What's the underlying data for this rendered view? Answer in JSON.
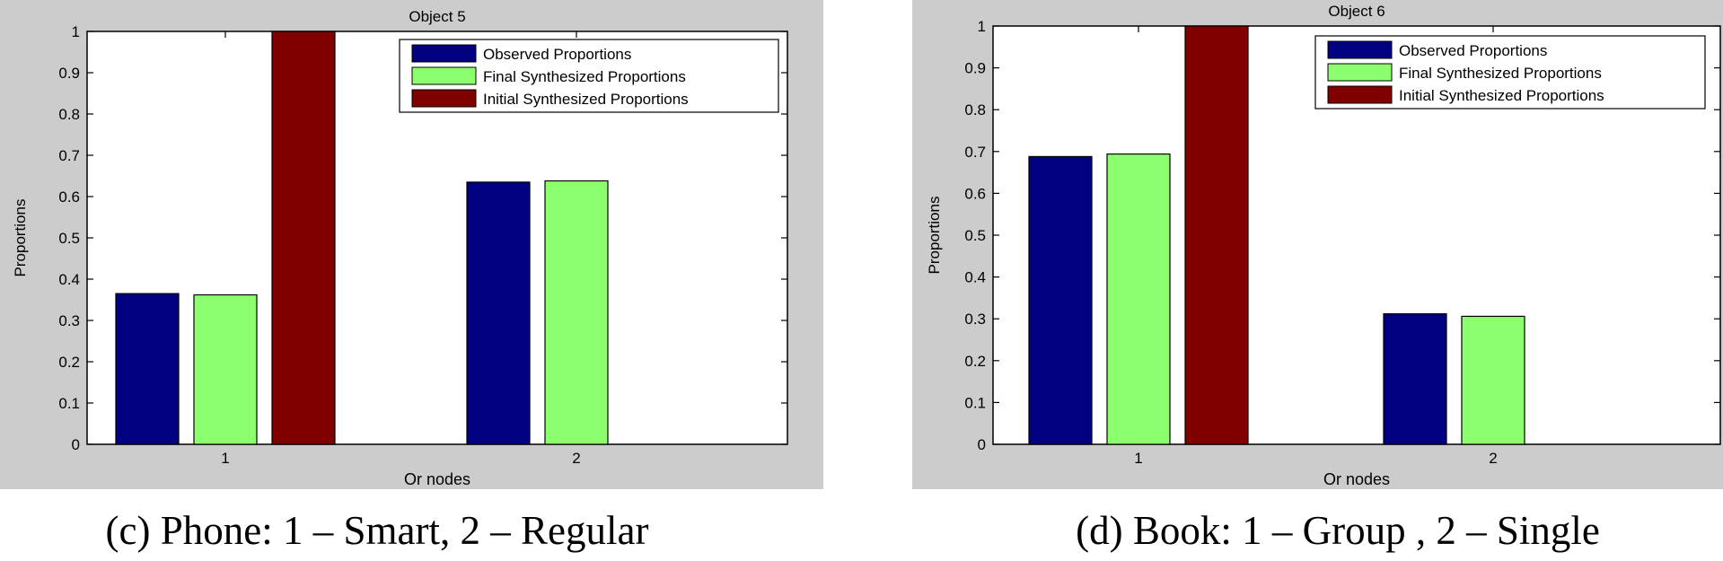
{
  "chart_data": [
    {
      "type": "bar",
      "title": "Object 5",
      "xlabel": "Or nodes",
      "ylabel": "Proportions",
      "categories": [
        "1",
        "2"
      ],
      "ylim": [
        0,
        1
      ],
      "yticks": [
        "0",
        "0.1",
        "0.2",
        "0.3",
        "0.4",
        "0.5",
        "0.6",
        "0.7",
        "0.8",
        "0.9",
        "1"
      ],
      "legend_position": "top-right",
      "series": [
        {
          "name": "Observed Proportions",
          "color": "#000080",
          "values": [
            0.365,
            0.635
          ]
        },
        {
          "name": "Final Synthesized Proportions",
          "color": "#8cff6e",
          "values": [
            0.362,
            0.638
          ]
        },
        {
          "name": "Initial Synthesized Proportions",
          "color": "#800000",
          "values": [
            1.0,
            0
          ]
        }
      ],
      "caption": "(c)  Phone: 1 – Smart, 2 – Regular"
    },
    {
      "type": "bar",
      "title": "Object 6",
      "xlabel": "Or nodes",
      "ylabel": "Proportions",
      "categories": [
        "1",
        "2"
      ],
      "ylim": [
        0,
        1
      ],
      "yticks": [
        "0",
        "0.1",
        "0.2",
        "0.3",
        "0.4",
        "0.5",
        "0.6",
        "0.7",
        "0.8",
        "0.9",
        "1"
      ],
      "legend_position": "top-right",
      "series": [
        {
          "name": "Observed Proportions",
          "color": "#000080",
          "values": [
            0.688,
            0.312
          ]
        },
        {
          "name": "Final Synthesized Proportions",
          "color": "#8cff6e",
          "values": [
            0.694,
            0.306
          ]
        },
        {
          "name": "Initial Synthesized Proportions",
          "color": "#800000",
          "values": [
            1.0,
            0
          ]
        }
      ],
      "caption": "(d)  Book: 1 – Group , 2 – Single"
    }
  ]
}
